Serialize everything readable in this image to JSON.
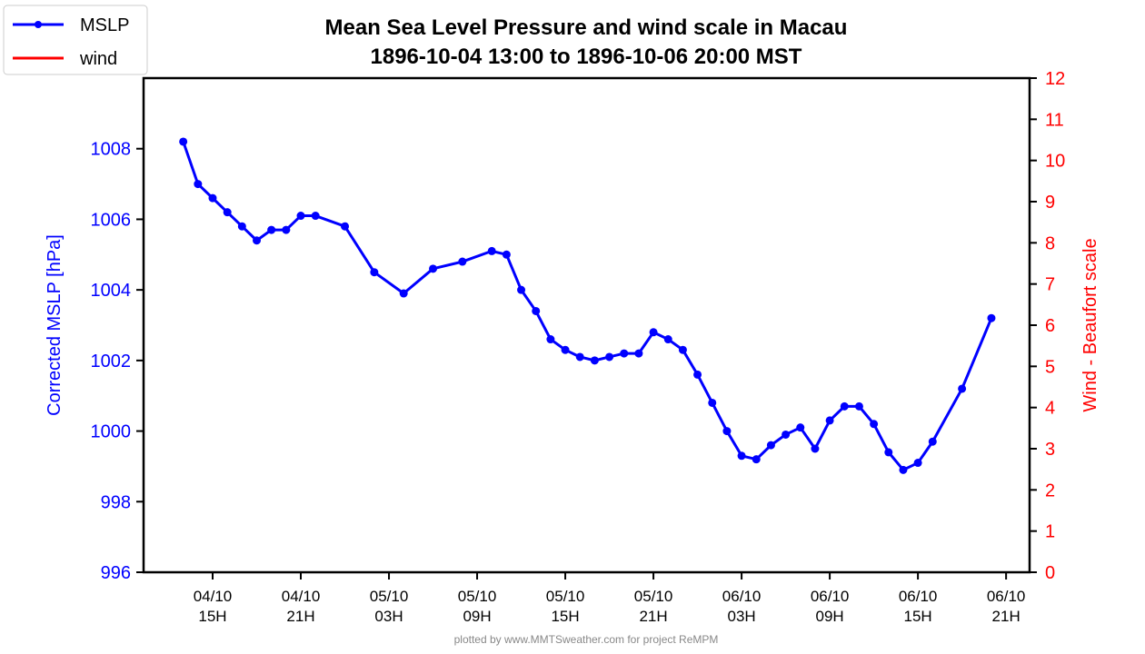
{
  "chart_data": {
    "type": "line",
    "title": "Mean Sea Level Pressure and wind scale in Macau",
    "subtitle": "1896-10-04 13:00 to 1896-10-06 20:00 MST",
    "ylabel": "Corrected MSLP [hPa]",
    "ylabel_right": "Wind - Beaufort scale",
    "footer": "plotted by www.MMTSweather.com for project ReMPM",
    "x_unit": "hours since 1896-10-04 00:00",
    "xlim": [
      10.3,
      70.6
    ],
    "ylim": [
      996,
      1010
    ],
    "ylim_right": [
      0,
      12
    ],
    "yticks": [
      996,
      998,
      1000,
      1002,
      1004,
      1006,
      1008
    ],
    "yticks_right": [
      0,
      1,
      2,
      3,
      4,
      5,
      6,
      7,
      8,
      9,
      10,
      11,
      12
    ],
    "xticks": [
      {
        "x": 15,
        "line1": "04/10",
        "line2": "15H"
      },
      {
        "x": 21,
        "line1": "04/10",
        "line2": "21H"
      },
      {
        "x": 27,
        "line1": "05/10",
        "line2": "03H"
      },
      {
        "x": 33,
        "line1": "05/10",
        "line2": "09H"
      },
      {
        "x": 39,
        "line1": "05/10",
        "line2": "15H"
      },
      {
        "x": 45,
        "line1": "05/10",
        "line2": "21H"
      },
      {
        "x": 51,
        "line1": "06/10",
        "line2": "03H"
      },
      {
        "x": 57,
        "line1": "06/10",
        "line2": "09H"
      },
      {
        "x": 63,
        "line1": "06/10",
        "line2": "15H"
      },
      {
        "x": 69,
        "line1": "06/10",
        "line2": "21H"
      }
    ],
    "legend": {
      "placement": "top-left",
      "entries": [
        {
          "label": "MSLP",
          "color": "#0000ff"
        },
        {
          "label": "wind",
          "color": "#ff0000"
        }
      ]
    },
    "series": [
      {
        "name": "MSLP",
        "color": "#0000ff",
        "x": [
          13,
          14,
          15,
          16,
          17,
          18,
          19,
          20,
          21,
          22,
          24,
          26,
          28,
          30,
          32,
          34,
          35,
          36,
          37,
          38,
          39,
          40,
          41,
          42,
          43,
          44,
          45,
          46,
          47,
          48,
          49,
          50,
          51,
          52,
          53,
          54,
          55,
          56,
          57,
          58,
          59,
          60,
          61,
          62,
          63,
          64,
          66,
          68
        ],
        "y": [
          1008.2,
          1007.0,
          1006.6,
          1006.2,
          1005.8,
          1005.4,
          1005.7,
          1005.7,
          1006.1,
          1006.1,
          1005.8,
          1004.5,
          1003.9,
          1004.6,
          1004.8,
          1005.1,
          1005.0,
          1004.0,
          1003.4,
          1002.6,
          1002.3,
          1002.1,
          1002.0,
          1002.1,
          1002.2,
          1002.2,
          1002.8,
          1002.6,
          1002.3,
          1001.6,
          1000.8,
          1000.0,
          999.3,
          999.2,
          999.6,
          999.9,
          1000.1,
          999.5,
          1000.3,
          1000.7,
          1000.7,
          1000.2,
          999.4,
          998.9,
          999.1,
          999.7,
          1001.2,
          1003.2
        ]
      },
      {
        "name": "wind",
        "color": "#ff0000",
        "x": [],
        "y": []
      }
    ]
  }
}
